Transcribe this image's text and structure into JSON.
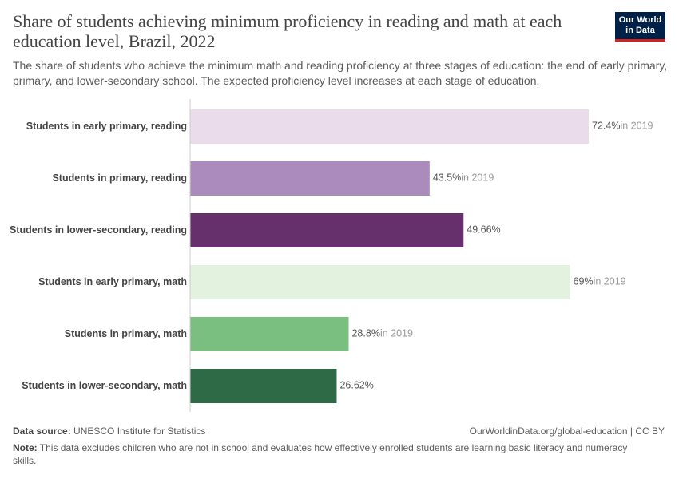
{
  "chart_data": {
    "type": "bar",
    "orientation": "horizontal",
    "title": "Share of students achieving minimum proficiency in reading and math at each education level, Brazil, 2022",
    "subtitle": "The share of students who achieve the minimum math and reading proficiency at three stages of education: the end of early primary, primary, and lower-secondary school. The expected proficiency level increases at each stage of education.",
    "categories": [
      "Students in early primary, reading",
      "Students in primary, reading",
      "Students in lower-secondary, reading",
      "Students in early primary, math",
      "Students in primary, math",
      "Students in lower-secondary, math"
    ],
    "values": [
      72.4,
      43.5,
      49.66,
      69,
      28.8,
      26.62
    ],
    "value_labels": [
      "72.4%",
      "43.5%",
      "49.66%",
      "69%",
      "28.8%",
      "26.62%"
    ],
    "annotations": [
      "in 2019",
      "in 2019",
      null,
      "in 2019",
      "in 2019",
      null
    ],
    "colors": [
      "#eadcea",
      "#ab8bbd",
      "#65306b",
      "#e2f2de",
      "#7bbf80",
      "#2f6a47"
    ],
    "xlim": [
      0,
      72.4
    ],
    "logo": [
      "Our World",
      "in Data"
    ],
    "source_label": "Data source:",
    "source": "UNESCO Institute for Statistics",
    "url": "OurWorldinData.org/global-education | CC BY",
    "note_label": "Note:",
    "note": "This data excludes children who are not in school and evaluates how effectively enrolled students are learning basic literacy and numeracy skills."
  }
}
